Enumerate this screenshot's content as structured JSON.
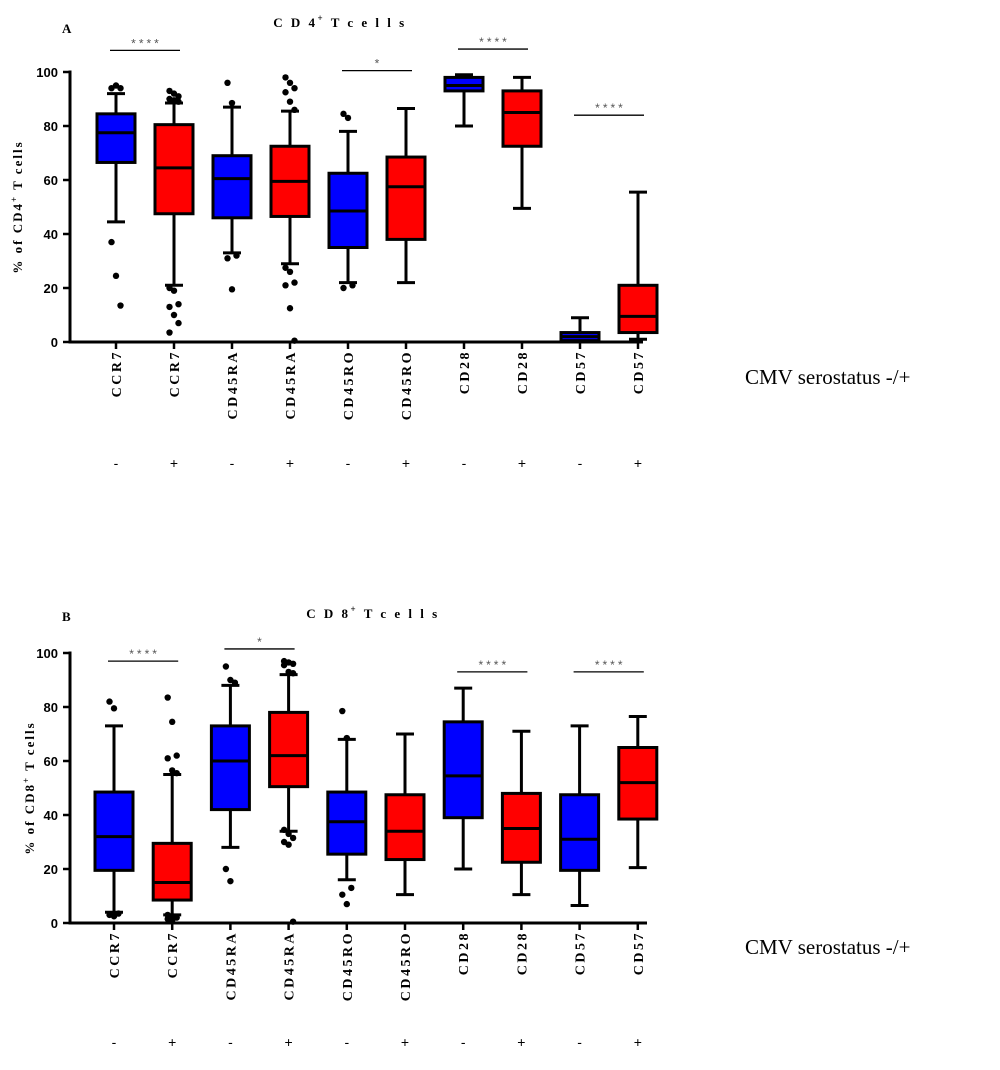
{
  "colors": {
    "negative": "#0000ff",
    "positive": "#ff0000",
    "axis": "#000000"
  },
  "serostatus_label": "CMV serostatus -/+",
  "chart_data": [
    {
      "type": "boxplot",
      "panel": "A",
      "title_main": "C D 4",
      "title_sup": "+",
      "title_rest": " T  c e l l s",
      "ylabel_main": "% of CD4",
      "ylabel_sup": "+",
      "ylabel_rest": " T cells",
      "ylim": [
        0,
        100
      ],
      "yticks": [
        0,
        20,
        40,
        60,
        80,
        100
      ],
      "groups": [
        {
          "label": "CCR7",
          "sign": "-",
          "q1": 66.5,
          "median": 77.5,
          "q3": 84.5,
          "wlo": 44.5,
          "whi": 92,
          "outliers": [
            94,
            95,
            94,
            37,
            24.5,
            13.5
          ],
          "cmv": "negative"
        },
        {
          "label": "CCR7",
          "sign": "+",
          "q1": 47.5,
          "median": 64.5,
          "q3": 80.5,
          "wlo": 21,
          "whi": 88.5,
          "outliers": [
            93,
            92,
            91,
            90,
            89.5,
            89,
            20,
            19,
            14,
            13,
            10,
            7,
            3.5
          ],
          "cmv": "positive"
        },
        {
          "label": "CD45RA",
          "sign": "-",
          "q1": 46,
          "median": 60.5,
          "q3": 69,
          "wlo": 33,
          "whi": 87,
          "outliers": [
            96,
            88.5,
            32,
            31,
            19.5
          ],
          "cmv": "negative"
        },
        {
          "label": "CD45RA",
          "sign": "+",
          "q1": 46.5,
          "median": 59.5,
          "q3": 72.5,
          "wlo": 29,
          "whi": 85.5,
          "outliers": [
            98,
            96,
            94,
            92.5,
            89,
            86,
            27.5,
            26,
            22,
            21,
            12.5,
            0.5
          ],
          "cmv": "positive"
        },
        {
          "label": "CD45RO",
          "sign": "-",
          "q1": 35,
          "median": 48.5,
          "q3": 62.5,
          "wlo": 22,
          "whi": 78,
          "outliers": [
            84.5,
            83,
            21,
            20
          ],
          "cmv": "negative"
        },
        {
          "label": "CD45RO",
          "sign": "+",
          "q1": 38,
          "median": 57.5,
          "q3": 68.5,
          "wlo": 22,
          "whi": 86.5,
          "outliers": [],
          "cmv": "positive"
        },
        {
          "label": "CD28",
          "sign": "-",
          "q1": 93,
          "median": 95,
          "q3": 98,
          "wlo": 80,
          "whi": 99,
          "outliers": [],
          "cmv": "negative"
        },
        {
          "label": "CD28",
          "sign": "+",
          "q1": 72.5,
          "median": 85,
          "q3": 93,
          "wlo": 49.5,
          "whi": 98,
          "outliers": [],
          "cmv": "positive"
        },
        {
          "label": "CD57",
          "sign": "-",
          "q1": 0.5,
          "median": 2,
          "q3": 3.5,
          "wlo": 0,
          "whi": 9,
          "outliers": [],
          "cmv": "negative"
        },
        {
          "label": "CD57",
          "sign": "+",
          "q1": 3.5,
          "median": 9.5,
          "q3": 21,
          "wlo": 1,
          "whi": 55.5,
          "outliers": [],
          "cmv": "positive"
        }
      ],
      "significance": [
        {
          "from": 0,
          "to": 1,
          "y": 108,
          "label": "****"
        },
        {
          "from": 4,
          "to": 5,
          "y": 100.5,
          "label": "*"
        },
        {
          "from": 6,
          "to": 7,
          "y": 108.5,
          "label": "****"
        },
        {
          "from": 8,
          "to": 9,
          "y": 84,
          "label": "****"
        }
      ]
    },
    {
      "type": "boxplot",
      "panel": "B",
      "title_main": "C D 8",
      "title_sup": "+",
      "title_rest": " T  c e l l s",
      "ylabel_main": "% of CD8",
      "ylabel_sup": "+",
      "ylabel_rest": " T cells",
      "ylim": [
        0,
        100
      ],
      "yticks": [
        0,
        20,
        40,
        60,
        80,
        100
      ],
      "groups": [
        {
          "label": "CCR7",
          "sign": "-",
          "q1": 19.5,
          "median": 32,
          "q3": 48.5,
          "wlo": 4,
          "whi": 73,
          "outliers": [
            82,
            79.5,
            3.5,
            3,
            2.5
          ],
          "cmv": "negative"
        },
        {
          "label": "CCR7",
          "sign": "+",
          "q1": 8.5,
          "median": 15,
          "q3": 29.5,
          "wlo": 3,
          "whi": 55,
          "outliers": [
            83.5,
            74.5,
            62,
            61,
            56.5,
            55.5,
            3,
            2.5,
            2,
            1.5,
            1
          ],
          "cmv": "positive"
        },
        {
          "label": "CD45RA",
          "sign": "-",
          "q1": 42,
          "median": 60,
          "q3": 73,
          "wlo": 28,
          "whi": 88,
          "outliers": [
            95,
            90,
            89,
            20,
            15.5
          ],
          "cmv": "negative"
        },
        {
          "label": "CD45RA",
          "sign": "+",
          "q1": 50.5,
          "median": 62,
          "q3": 78,
          "wlo": 34,
          "whi": 92,
          "outliers": [
            97,
            96.5,
            96,
            95.5,
            93,
            92.5,
            34.5,
            33,
            31.5,
            30,
            29,
            0.5
          ],
          "cmv": "positive"
        },
        {
          "label": "CD45RO",
          "sign": "-",
          "q1": 25.5,
          "median": 37.5,
          "q3": 48.5,
          "wlo": 16,
          "whi": 68,
          "outliers": [
            78.5,
            68.5,
            13,
            10.5,
            7
          ],
          "cmv": "negative"
        },
        {
          "label": "CD45RO",
          "sign": "+",
          "q1": 23.5,
          "median": 34,
          "q3": 47.5,
          "wlo": 10.5,
          "whi": 70,
          "outliers": [],
          "cmv": "positive"
        },
        {
          "label": "CD28",
          "sign": "-",
          "q1": 39,
          "median": 54.5,
          "q3": 74.5,
          "wlo": 20,
          "whi": 87,
          "outliers": [],
          "cmv": "negative"
        },
        {
          "label": "CD28",
          "sign": "+",
          "q1": 22.5,
          "median": 35,
          "q3": 48,
          "wlo": 10.5,
          "whi": 71,
          "outliers": [],
          "cmv": "positive"
        },
        {
          "label": "CD57",
          "sign": "-",
          "q1": 19.5,
          "median": 31,
          "q3": 47.5,
          "wlo": 6.5,
          "whi": 73,
          "outliers": [],
          "cmv": "negative"
        },
        {
          "label": "CD57",
          "sign": "+",
          "q1": 38.5,
          "median": 52,
          "q3": 65,
          "wlo": 20.5,
          "whi": 76.5,
          "outliers": [],
          "cmv": "positive"
        }
      ],
      "significance": [
        {
          "from": 0,
          "to": 1,
          "y": 97,
          "label": "****"
        },
        {
          "from": 2,
          "to": 3,
          "y": 101.5,
          "label": "*"
        },
        {
          "from": 6,
          "to": 7,
          "y": 93,
          "label": "****"
        },
        {
          "from": 8,
          "to": 9,
          "y": 93,
          "label": "****"
        }
      ]
    }
  ]
}
